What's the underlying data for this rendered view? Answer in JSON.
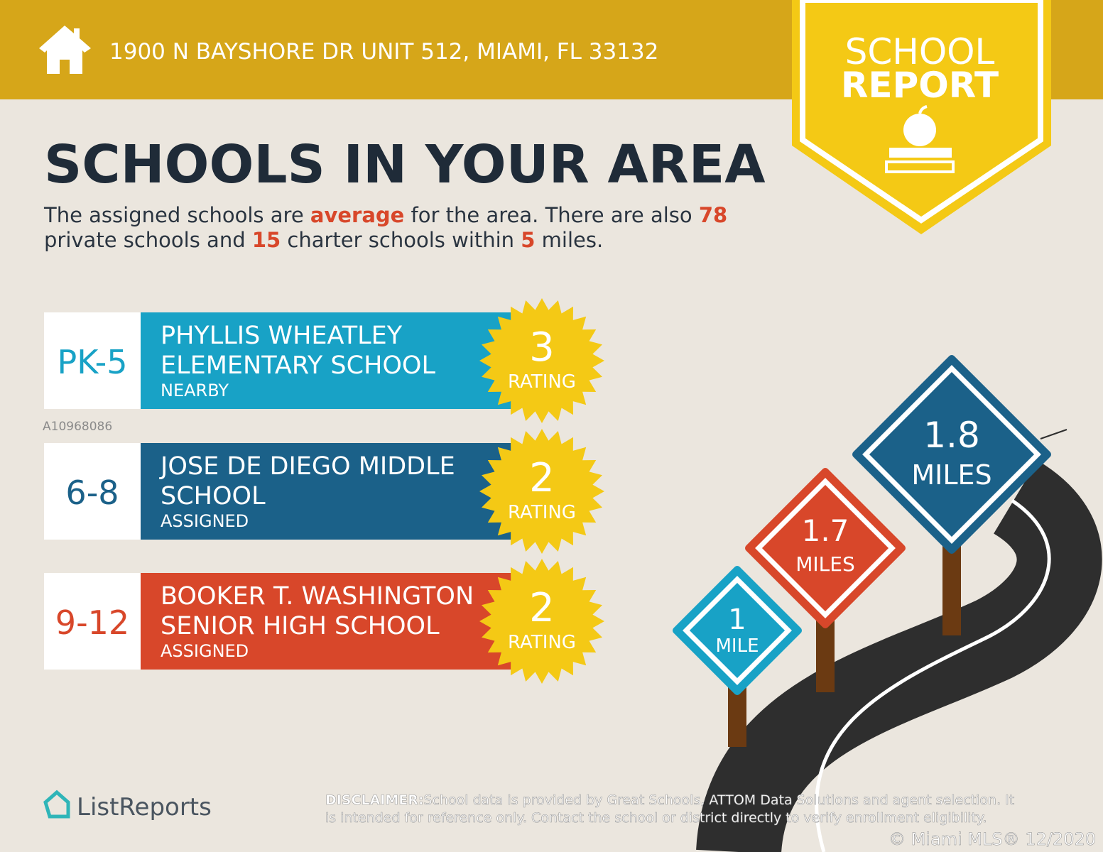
{
  "header": {
    "address": "1900 N BAYSHORE DR UNIT 512, MIAMI, FL 33132"
  },
  "badge": {
    "line1": "SCHOOL",
    "line2": "REPORT"
  },
  "title": "SCHOOLS IN YOUR AREA",
  "summary": [
    [
      {
        "text": "The assigned schools are ",
        "highlight": false
      },
      {
        "text": "average",
        "highlight": true
      },
      {
        "text": " for the area. There are also ",
        "highlight": false
      },
      {
        "text": "78",
        "highlight": true
      }
    ],
    [
      {
        "text": "private schools and ",
        "highlight": false
      },
      {
        "text": "15",
        "highlight": true
      },
      {
        "text": " charter schools within ",
        "highlight": false
      },
      {
        "text": "5",
        "highlight": true
      },
      {
        "text": " miles.",
        "highlight": false
      }
    ]
  ],
  "schools": [
    {
      "grade": "PK-5",
      "name": [
        "PHYLLIS WHEATLEY",
        "ELEMENTARY SCHOOL"
      ],
      "status": "NEARBY",
      "rating": 3,
      "rating_label": "RATING",
      "color": "#18a2c6"
    },
    {
      "grade": "6-8",
      "name": [
        "JOSE DE DIEGO MIDDLE",
        "SCHOOL"
      ],
      "status": "ASSIGNED",
      "rating": 2,
      "rating_label": "RATING",
      "color": "#1b6189"
    },
    {
      "grade": "9-12",
      "name": [
        "BOOKER T. WASHINGTON",
        "SENIOR HIGH SCHOOL"
      ],
      "status": "ASSIGNED",
      "rating": 2,
      "rating_label": "RATING",
      "color": "#d8472a"
    }
  ],
  "signs": [
    {
      "value": "1",
      "unit": "MILE",
      "color": "#18a2c6"
    },
    {
      "value": "1.7",
      "unit": "MILES",
      "color": "#d8472a"
    },
    {
      "value": "1.8",
      "unit": "MILES",
      "color": "#1b6189"
    }
  ],
  "watermark": "A10968086",
  "logo": "ListReports",
  "disclaimer": {
    "label": "DISCLAIMER:",
    "lines": [
      "School data is provided by Great Schools, ATTOM Data Solutions and agent selection. It",
      "is intended for reference only. Contact the school or district directly to verify enrollment eligibility."
    ]
  },
  "copyright": "© Miami MLS® 12/2020"
}
